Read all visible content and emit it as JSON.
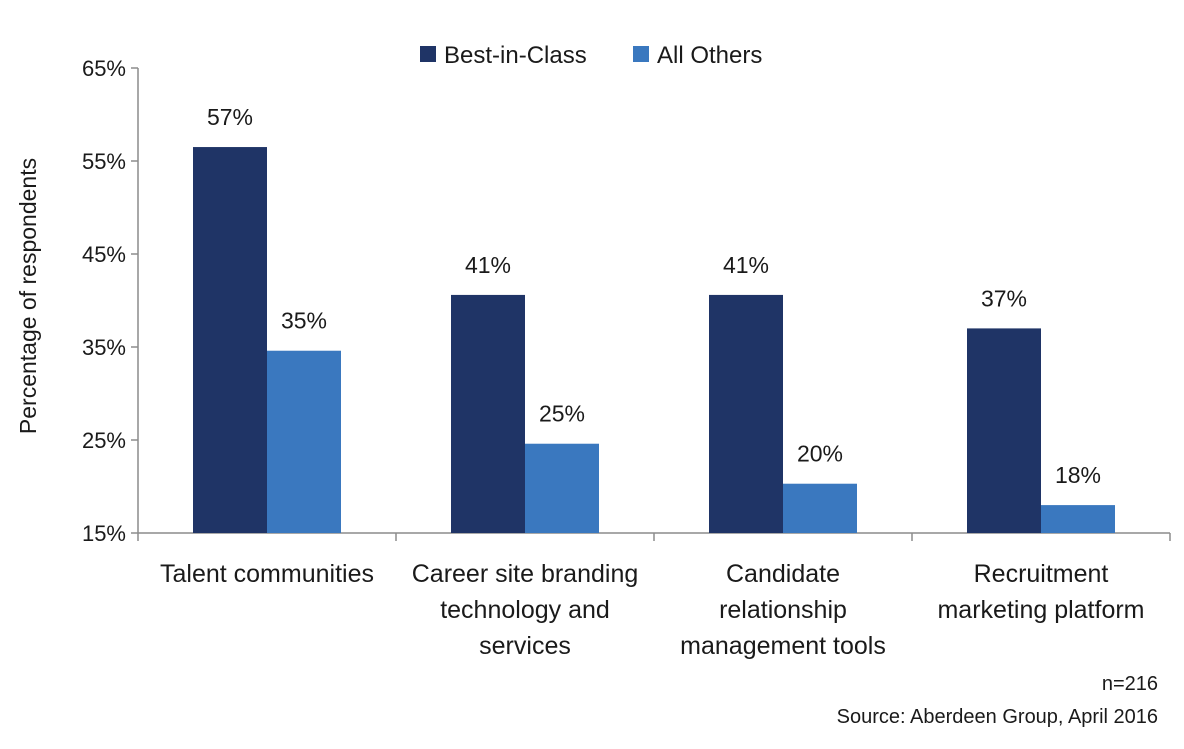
{
  "chart_data": {
    "type": "bar",
    "categories": [
      [
        "Talent communities"
      ],
      [
        "Career site branding",
        "technology and",
        "services"
      ],
      [
        "Candidate",
        "relationship",
        "management tools"
      ],
      [
        "Recruitment",
        "marketing platform"
      ]
    ],
    "series": [
      {
        "name": "Best-in-Class",
        "color": "#1f3466",
        "values": [
          56.5,
          40.6,
          40.6,
          37
        ],
        "labels": [
          "57%",
          "41%",
          "41%",
          "37%"
        ]
      },
      {
        "name": "All Others",
        "color": "#3a78bf",
        "values": [
          34.6,
          24.6,
          20.3,
          18
        ],
        "labels": [
          "35%",
          "25%",
          "20%",
          "18%"
        ]
      }
    ],
    "ylabel": "Percentage of respondents",
    "xlabel": "",
    "ylim": [
      15,
      65
    ],
    "yticks": [
      15,
      25,
      35,
      45,
      55,
      65
    ],
    "ytick_labels": [
      "15%",
      "25%",
      "35%",
      "45%",
      "55%",
      "65%"
    ],
    "grid": false,
    "legend_position": "top-center",
    "footnotes": [
      "n=216",
      "Source: Aberdeen Group, April 2016"
    ]
  }
}
